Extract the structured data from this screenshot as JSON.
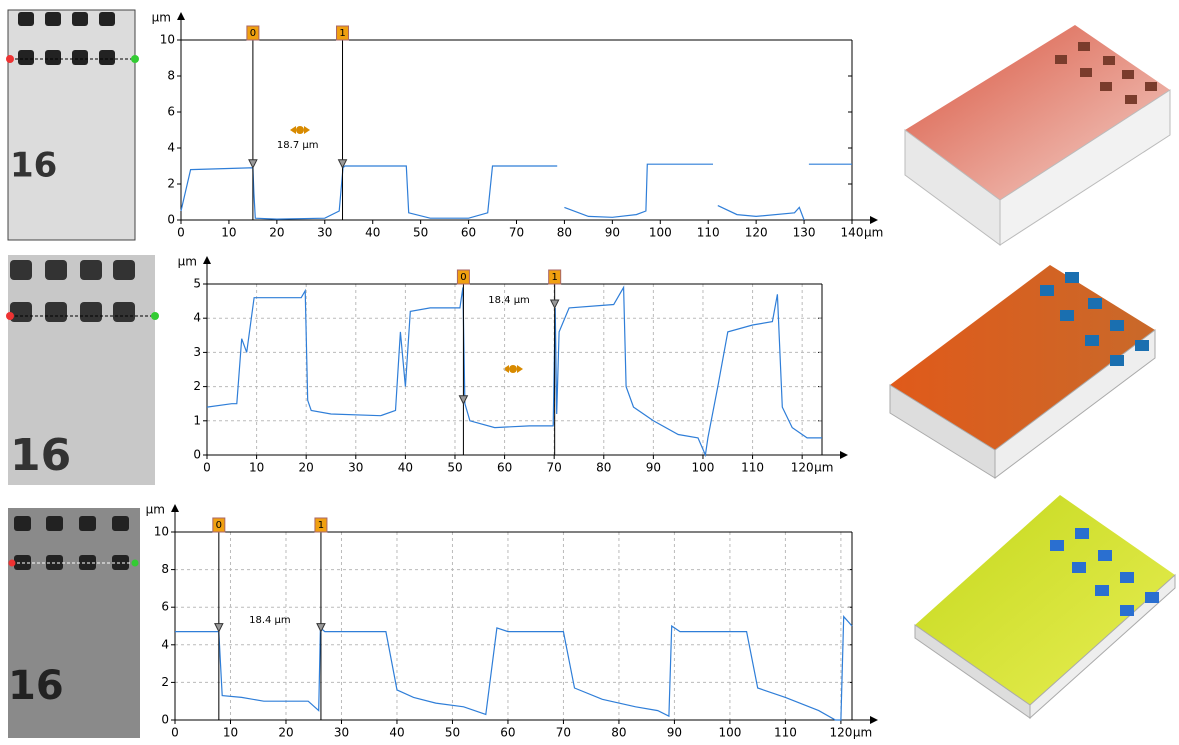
{
  "chart_data": [
    {
      "type": "line",
      "x_label": "µm",
      "y_label": "µm",
      "xlim": [
        0,
        140
      ],
      "ylim": [
        0,
        10
      ],
      "xticks": [
        0,
        10,
        20,
        30,
        40,
        50,
        60,
        70,
        80,
        90,
        100,
        110,
        120,
        130,
        140
      ],
      "yticks": [
        0,
        2,
        4,
        6,
        8,
        10
      ],
      "grid": false,
      "color": "#2f7ed8",
      "x": [
        0,
        2,
        15,
        15.2,
        15.5,
        20,
        30,
        33,
        33.8,
        34.2,
        47,
        47.5,
        52,
        60,
        64,
        65,
        78.5,
        79,
        80,
        85,
        90,
        95,
        97,
        97.3,
        111,
        111.5,
        112,
        116,
        120,
        128,
        129,
        130,
        130.5,
        131,
        140
      ],
      "values": [
        0.5,
        2.8,
        2.9,
        1.5,
        0.1,
        0.05,
        0.1,
        0.5,
        2.9,
        3.0,
        3.0,
        0.4,
        0.1,
        0.1,
        0.4,
        3.0,
        3.0,
        null,
        0.7,
        0.2,
        0.15,
        0.3,
        0.5,
        3.1,
        3.1,
        null,
        0.8,
        0.3,
        0.2,
        0.4,
        0.7,
        0.0,
        null,
        3.1,
        3.1
      ],
      "cursors": [
        {
          "label": "0",
          "x": 15
        },
        {
          "label": "1",
          "x": 33.7
        }
      ],
      "annotation": "18.7 µm"
    },
    {
      "type": "line",
      "x_label": "µm",
      "y_label": "µm",
      "xlim": [
        0,
        124
      ],
      "ylim": [
        0,
        5
      ],
      "xticks": [
        0,
        10,
        20,
        30,
        40,
        50,
        60,
        70,
        80,
        90,
        100,
        110,
        120
      ],
      "yticks": [
        0,
        1,
        2,
        3,
        4,
        5
      ],
      "grid": true,
      "color": "#2f7ed8",
      "x": [
        0,
        5,
        6,
        7,
        8,
        9.5,
        19,
        19.8,
        20.3,
        21,
        25,
        35,
        38,
        39,
        40,
        41,
        45,
        51,
        51.6,
        52,
        53,
        58,
        65,
        69.8,
        70.2,
        70.5,
        71,
        73,
        82,
        84,
        84.5,
        86,
        90,
        95,
        99,
        100.5,
        101,
        103,
        105,
        110,
        114,
        115,
        116,
        118,
        121,
        124
      ],
      "values": [
        1.4,
        1.5,
        1.5,
        3.4,
        3.0,
        4.6,
        4.6,
        4.8,
        1.6,
        1.3,
        1.2,
        1.15,
        1.3,
        3.6,
        2.0,
        4.2,
        4.3,
        4.3,
        4.9,
        1.5,
        1.0,
        0.8,
        0.85,
        0.85,
        4.3,
        1.2,
        3.6,
        4.3,
        4.4,
        4.9,
        2.0,
        1.4,
        1.0,
        0.6,
        0.5,
        0.0,
        0.5,
        2.0,
        3.6,
        3.8,
        3.9,
        4.7,
        1.4,
        0.8,
        0.5,
        0.5
      ],
      "cursors": [
        {
          "label": "0",
          "x": 51.7
        },
        {
          "label": "1",
          "x": 70.1
        }
      ],
      "annotation": "18.4 µm"
    },
    {
      "type": "line",
      "x_label": "µm",
      "y_label": "µm",
      "xlim": [
        0,
        122
      ],
      "ylim": [
        0,
        10
      ],
      "xticks": [
        0,
        10,
        20,
        30,
        40,
        50,
        60,
        70,
        80,
        90,
        100,
        110,
        120
      ],
      "yticks": [
        0,
        2,
        4,
        6,
        8,
        10
      ],
      "grid": true,
      "color": "#2f7ed8",
      "x": [
        0,
        7.9,
        8.5,
        12,
        16,
        24,
        25.9,
        26.2,
        27,
        38,
        40,
        43,
        47,
        52,
        56,
        58,
        60,
        70,
        72,
        77,
        83,
        87,
        89,
        89.5,
        91,
        103,
        105,
        110,
        116,
        119,
        120,
        120.5,
        122
      ],
      "values": [
        4.7,
        4.7,
        1.3,
        1.2,
        1.0,
        1.0,
        0.5,
        4.9,
        4.7,
        4.7,
        1.6,
        1.2,
        0.9,
        0.7,
        0.3,
        4.9,
        4.7,
        4.7,
        1.7,
        1.1,
        0.7,
        0.5,
        0.2,
        5.0,
        4.7,
        4.7,
        1.7,
        1.2,
        0.5,
        0.0,
        0.0,
        5.5,
        5.0
      ],
      "cursors": [
        {
          "label": "0",
          "x": 7.9
        },
        {
          "label": "1",
          "x": 26.3
        }
      ],
      "annotation": "18.4 µm"
    }
  ],
  "thumbnails": [
    {
      "label": "16"
    },
    {
      "label": "16"
    },
    {
      "label": "16"
    }
  ]
}
